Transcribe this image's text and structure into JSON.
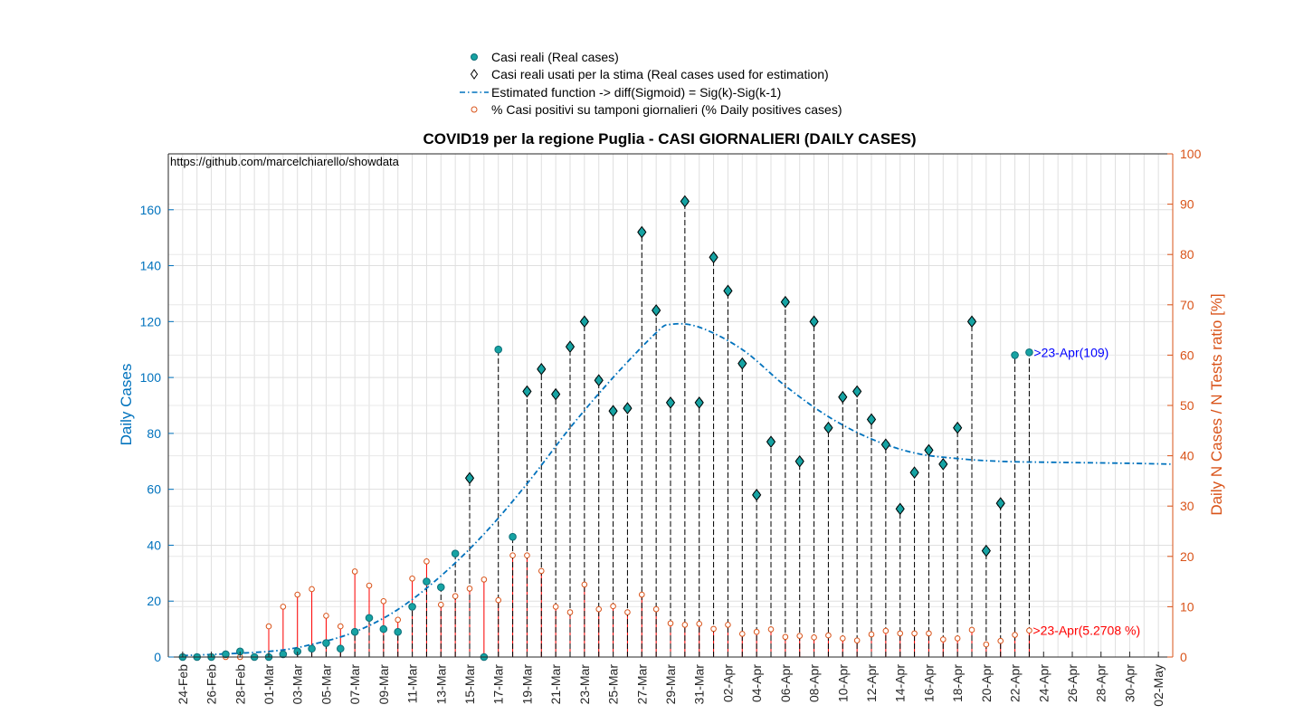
{
  "chart_data": {
    "type": "line",
    "title": "COVID19 per la regione Puglia - CASI GIORNALIERI (DAILY CASES)",
    "source_text": "https://github.com/marcelchiarello/showdata",
    "ylabel_left": "Daily Cases",
    "ylabel_right": "Daily N Cases / N Tests ratio [%]",
    "ylim_left": [
      0,
      180
    ],
    "yticks_left": [
      0,
      20,
      40,
      60,
      80,
      100,
      120,
      140,
      160
    ],
    "ylim_right": [
      0,
      100
    ],
    "yticks_right": [
      0,
      10,
      20,
      30,
      40,
      50,
      60,
      70,
      80,
      90,
      100
    ],
    "grid": true,
    "legend_position": "top-center",
    "colors": {
      "left_axis": "#0072bd",
      "right_axis": "#d95319",
      "marker_fill": "#16a3a3",
      "marker_edge": "#0d6e78",
      "diamond_edge": "#000000",
      "fit_line": "#0072bd",
      "stem_black": "#000000",
      "stem_red": "#ff0000",
      "pct_marker": "#d95319",
      "annotation_blue": "#0000ff",
      "annotation_red": "#ff0000"
    },
    "x_tick_labels": [
      "24-Feb",
      "26-Feb",
      "28-Feb",
      "01-Mar",
      "03-Mar",
      "05-Mar",
      "07-Mar",
      "09-Mar",
      "11-Mar",
      "13-Mar",
      "15-Mar",
      "17-Mar",
      "19-Mar",
      "21-Mar",
      "23-Mar",
      "25-Mar",
      "27-Mar",
      "29-Mar",
      "31-Mar",
      "02-Apr",
      "04-Apr",
      "06-Apr",
      "08-Apr",
      "10-Apr",
      "12-Apr",
      "14-Apr",
      "16-Apr",
      "18-Apr",
      "20-Apr",
      "22-Apr",
      "24-Apr",
      "26-Apr",
      "28-Apr",
      "30-Apr",
      "02-May"
    ],
    "legend": [
      {
        "key": "real",
        "label": "Casi reali (Real cases)"
      },
      {
        "key": "used",
        "label": "Casi reali usati per la stima (Real cases used for estimation)"
      },
      {
        "key": "fit",
        "label": "Estimated function -> diff(Sigmoid) = Sig(k)-Sig(k-1)"
      },
      {
        "key": "pct",
        "label": "% Casi positivi su tamponi giornalieri (% Daily positives cases)"
      }
    ],
    "series_real_cases": {
      "dates": [
        "24-Feb",
        "25-Feb",
        "26-Feb",
        "27-Feb",
        "28-Feb",
        "29-Feb",
        "01-Mar",
        "02-Mar",
        "03-Mar",
        "04-Mar",
        "05-Mar",
        "06-Mar",
        "07-Mar",
        "08-Mar",
        "09-Mar",
        "10-Mar",
        "11-Mar",
        "12-Mar",
        "13-Mar",
        "14-Mar",
        "15-Mar",
        "16-Mar",
        "17-Mar",
        "18-Mar",
        "19-Mar",
        "20-Mar",
        "21-Mar",
        "22-Mar",
        "23-Mar",
        "24-Mar",
        "25-Mar",
        "26-Mar",
        "27-Mar",
        "28-Mar",
        "29-Mar",
        "30-Mar",
        "31-Mar",
        "01-Apr",
        "02-Apr",
        "03-Apr",
        "04-Apr",
        "05-Apr",
        "06-Apr",
        "07-Apr",
        "08-Apr",
        "09-Apr",
        "10-Apr",
        "11-Apr",
        "12-Apr",
        "13-Apr",
        "14-Apr",
        "15-Apr",
        "16-Apr",
        "17-Apr",
        "18-Apr",
        "19-Apr",
        "20-Apr",
        "21-Apr",
        "22-Apr",
        "23-Apr"
      ],
      "values": [
        0,
        0,
        0,
        1,
        2,
        0,
        0,
        1,
        2,
        3,
        5,
        3,
        9,
        14,
        10,
        9,
        18,
        27,
        25,
        37,
        64,
        0,
        110,
        43,
        95,
        103,
        94,
        111,
        120,
        99,
        88,
        89,
        152,
        124,
        91,
        163,
        91,
        143,
        131,
        105,
        58,
        77,
        127,
        70,
        120,
        82,
        93,
        95,
        85,
        76,
        53,
        66,
        74,
        69,
        82,
        120,
        38,
        55,
        108,
        109
      ]
    },
    "series_used_for_estimation": {
      "dates": [
        "15-Mar",
        "19-Mar",
        "20-Mar",
        "21-Mar",
        "22-Mar",
        "23-Mar",
        "24-Mar",
        "25-Mar",
        "26-Mar",
        "27-Mar",
        "28-Mar",
        "29-Mar",
        "30-Mar",
        "31-Mar",
        "01-Apr",
        "02-Apr",
        "03-Apr",
        "04-Apr",
        "05-Apr",
        "06-Apr",
        "07-Apr",
        "08-Apr",
        "09-Apr",
        "10-Apr",
        "11-Apr",
        "12-Apr",
        "13-Apr",
        "14-Apr",
        "15-Apr",
        "16-Apr",
        "17-Apr",
        "18-Apr",
        "19-Apr",
        "20-Apr",
        "21-Apr"
      ],
      "values": [
        64,
        95,
        103,
        94,
        111,
        120,
        99,
        88,
        89,
        152,
        124,
        91,
        163,
        91,
        143,
        131,
        105,
        58,
        77,
        127,
        70,
        120,
        82,
        93,
        95,
        85,
        76,
        53,
        66,
        74,
        69,
        82,
        120,
        38,
        55
      ]
    },
    "series_estimated_function": {
      "x": [
        "24-Feb",
        "01-Mar",
        "04-Mar",
        "07-Mar",
        "10-Mar",
        "13-Mar",
        "16-Mar",
        "19-Mar",
        "22-Mar",
        "25-Mar",
        "28-Mar",
        "29-Mar",
        "31-Mar",
        "03-Apr",
        "06-Apr",
        "09-Apr",
        "12-Apr",
        "15-Apr",
        "18-Apr",
        "21-Apr",
        "24-Apr",
        "27-Apr",
        "30-Apr",
        "02-May",
        "03-May"
      ],
      "values": [
        0.5,
        2,
        4.5,
        9,
        17,
        29,
        44,
        62,
        82,
        100,
        116,
        119,
        118,
        110,
        97,
        86,
        78,
        73,
        71,
        70,
        69.7,
        69.5,
        69.3,
        69.1,
        69
      ]
    },
    "series_pct_positive": {
      "dates": [
        "24-Feb",
        "25-Feb",
        "26-Feb",
        "27-Feb",
        "28-Feb",
        "29-Feb",
        "01-Mar",
        "02-Mar",
        "03-Mar",
        "04-Mar",
        "05-Mar",
        "06-Mar",
        "07-Mar",
        "08-Mar",
        "09-Mar",
        "10-Mar",
        "11-Mar",
        "12-Mar",
        "13-Mar",
        "14-Mar",
        "15-Mar",
        "16-Mar",
        "17-Mar",
        "18-Mar",
        "19-Mar",
        "20-Mar",
        "21-Mar",
        "22-Mar",
        "23-Mar",
        "24-Mar",
        "25-Mar",
        "26-Mar",
        "27-Mar",
        "28-Mar",
        "29-Mar",
        "30-Mar",
        "31-Mar",
        "01-Apr",
        "02-Apr",
        "03-Apr",
        "04-Apr",
        "05-Apr",
        "06-Apr",
        "07-Apr",
        "08-Apr",
        "09-Apr",
        "10-Apr",
        "11-Apr",
        "12-Apr",
        "13-Apr",
        "14-Apr",
        "15-Apr",
        "16-Apr",
        "17-Apr",
        "18-Apr",
        "19-Apr",
        "20-Apr",
        "21-Apr",
        "22-Apr",
        "23-Apr"
      ],
      "values": [
        0,
        0,
        0,
        0,
        0,
        0,
        6.1,
        10,
        12.4,
        13.5,
        8.2,
        6.1,
        17,
        14.2,
        11.1,
        7.4,
        15.6,
        19,
        10.4,
        12.1,
        13.6,
        15.4,
        11.3,
        20.2,
        20.2,
        17.1,
        10,
        8.9,
        14.4,
        9.5,
        10.1,
        8.9,
        12.4,
        9.5,
        6.7,
        6.4,
        6.6,
        5.6,
        6.4,
        4.6,
        5,
        5.5,
        4,
        4.2,
        3.9,
        4.3,
        3.7,
        3.3,
        4.5,
        5.2,
        4.7,
        4.7,
        4.7,
        3.5,
        3.7,
        5.4,
        2.5,
        3.2,
        4.4,
        5.27
      ]
    },
    "annotations": [
      {
        "key": "cases",
        "text": ">23-Apr(109)"
      },
      {
        "key": "pct",
        "text": ">23-Apr(5.2708 %)"
      }
    ]
  }
}
